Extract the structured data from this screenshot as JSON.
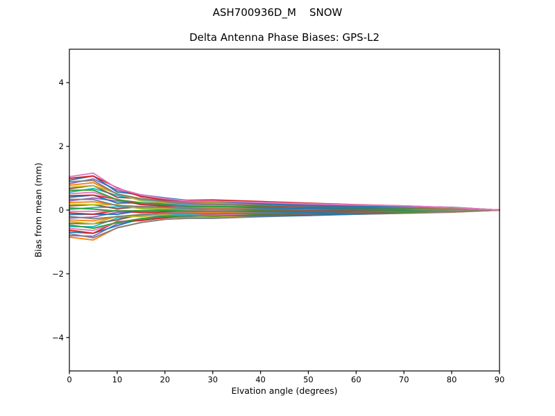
{
  "chart_data": {
    "type": "line",
    "suptitle": "ASH700936D_M    SNOW",
    "title": "Delta Antenna Phase Biases: GPS-L2",
    "xlabel": "Elvation angle (degrees)",
    "ylabel": "Bias from mean (mm)",
    "xlim": [
      0,
      90
    ],
    "ylim": [
      -5.05,
      5.05
    ],
    "grid": false,
    "legend": "none",
    "frame_color": "#000000",
    "background_color": "#ffffff",
    "xticks": [
      0,
      10,
      20,
      30,
      40,
      50,
      60,
      70,
      80,
      90
    ],
    "yticks": [
      {
        "value": -4,
        "label": "−4"
      },
      {
        "value": -2,
        "label": "−2"
      },
      {
        "value": 0,
        "label": "0"
      },
      {
        "value": 2,
        "label": "2"
      },
      {
        "value": 4,
        "label": "4"
      }
    ],
    "x": [
      0,
      5,
      10,
      15,
      20,
      25,
      30,
      40,
      50,
      60,
      70,
      80,
      90
    ],
    "series": [
      {
        "color": "#ff7f0e",
        "values": [
          -0.85,
          -0.94,
          -0.55,
          -0.39,
          -0.29,
          -0.24,
          -0.23,
          -0.2,
          -0.16,
          -0.13,
          -0.1,
          -0.07,
          0
        ]
      },
      {
        "color": "#9467bd",
        "values": [
          -0.8,
          -0.82,
          -0.43,
          -0.31,
          -0.24,
          -0.2,
          -0.17,
          -0.13,
          -0.13,
          -0.11,
          -0.09,
          -0.06,
          0
        ]
      },
      {
        "color": "#7f7f7f",
        "values": [
          -0.74,
          -0.87,
          -0.56,
          -0.39,
          -0.29,
          -0.26,
          -0.26,
          -0.21,
          -0.17,
          -0.13,
          -0.1,
          -0.06,
          0
        ]
      },
      {
        "color": "#1f77b4",
        "values": [
          -0.69,
          -0.73,
          -0.49,
          -0.27,
          -0.17,
          -0.15,
          -0.17,
          -0.18,
          -0.17,
          -0.12,
          -0.08,
          -0.05,
          0
        ]
      },
      {
        "color": "#d62728",
        "values": [
          -0.63,
          -0.73,
          -0.36,
          -0.33,
          -0.24,
          -0.15,
          -0.12,
          -0.11,
          -0.09,
          -0.08,
          -0.07,
          -0.05,
          0
        ]
      },
      {
        "color": "#e377c2",
        "values": [
          -0.58,
          -0.64,
          -0.38,
          -0.27,
          -0.2,
          -0.16,
          -0.16,
          -0.13,
          -0.11,
          -0.09,
          -0.07,
          -0.05,
          0
        ]
      },
      {
        "color": "#17becf",
        "values": [
          -0.52,
          -0.52,
          -0.25,
          -0.18,
          -0.15,
          -0.13,
          -0.1,
          -0.07,
          -0.08,
          -0.07,
          -0.05,
          -0.04,
          0
        ]
      },
      {
        "color": "#2ca02c",
        "values": [
          -0.47,
          -0.57,
          -0.39,
          -0.27,
          -0.2,
          -0.18,
          -0.19,
          -0.15,
          -0.12,
          -0.09,
          -0.07,
          -0.04,
          0
        ]
      },
      {
        "color": "#8c564b",
        "values": [
          -0.42,
          -0.43,
          -0.31,
          -0.14,
          -0.08,
          -0.08,
          -0.09,
          -0.12,
          -0.12,
          -0.08,
          -0.05,
          -0.02,
          0
        ]
      },
      {
        "color": "#bcbd22",
        "values": [
          -0.36,
          -0.43,
          -0.19,
          -0.21,
          -0.14,
          -0.07,
          -0.05,
          -0.04,
          -0.04,
          -0.03,
          -0.03,
          -0.03,
          0
        ]
      },
      {
        "color": "#ff7f0e",
        "values": [
          -0.31,
          -0.34,
          -0.2,
          -0.14,
          -0.1,
          -0.09,
          -0.08,
          -0.07,
          -0.06,
          -0.05,
          -0.04,
          -0.02,
          0
        ]
      },
      {
        "color": "#9467bd",
        "values": [
          -0.25,
          -0.22,
          -0.07,
          -0.06,
          -0.06,
          -0.05,
          -0.03,
          -0.01,
          -0.03,
          -0.03,
          -0.02,
          -0.02,
          0
        ]
      },
      {
        "color": "#7f7f7f",
        "values": [
          -0.2,
          -0.27,
          -0.21,
          -0.14,
          -0.11,
          -0.11,
          -0.11,
          -0.09,
          -0.07,
          -0.05,
          -0.03,
          -0.02,
          0
        ]
      },
      {
        "color": "#1f77b4",
        "values": [
          -0.14,
          -0.13,
          -0.13,
          -0.02,
          0.01,
          0.0,
          -0.02,
          -0.05,
          -0.07,
          -0.04,
          -0.02,
          0.0,
          0
        ]
      },
      {
        "color": "#d62728",
        "values": [
          -0.09,
          -0.13,
          -0.01,
          -0.08,
          -0.05,
          0.01,
          0.03,
          0.02,
          0.01,
          0.01,
          0.0,
          -0.01,
          0
        ]
      },
      {
        "color": "#e377c2",
        "values": [
          -0.04,
          -0.04,
          -0.02,
          -0.02,
          -0.01,
          -0.01,
          -0.01,
          -0.01,
          -0.01,
          -0.01,
          0.0,
          0.0,
          0
        ]
      },
      {
        "color": "#17becf",
        "values": [
          0.02,
          0.08,
          0.1,
          0.07,
          0.04,
          0.03,
          0.05,
          0.05,
          0.02,
          0.01,
          0.01,
          0.0,
          0
        ]
      },
      {
        "color": "#2ca02c",
        "values": [
          0.07,
          0.03,
          -0.03,
          -0.02,
          -0.01,
          -0.03,
          -0.04,
          -0.02,
          -0.02,
          -0.01,
          0.0,
          0.01,
          0
        ]
      },
      {
        "color": "#8c564b",
        "values": [
          0.13,
          0.17,
          0.04,
          0.11,
          0.1,
          0.08,
          0.05,
          0.01,
          -0.02,
          0.0,
          0.02,
          0.02,
          0
        ]
      },
      {
        "color": "#bcbd22",
        "values": [
          0.18,
          0.17,
          0.17,
          0.04,
          0.04,
          0.08,
          0.1,
          0.08,
          0.06,
          0.05,
          0.03,
          0.01,
          0
        ]
      },
      {
        "color": "#ff7f0e",
        "values": [
          0.24,
          0.26,
          0.15,
          0.11,
          0.08,
          0.07,
          0.06,
          0.05,
          0.04,
          0.04,
          0.03,
          0.02,
          0
        ]
      },
      {
        "color": "#9467bd",
        "values": [
          0.29,
          0.38,
          0.28,
          0.19,
          0.13,
          0.1,
          0.12,
          0.12,
          0.08,
          0.05,
          0.04,
          0.02,
          0
        ]
      },
      {
        "color": "#7f7f7f",
        "values": [
          0.34,
          0.33,
          0.14,
          0.11,
          0.08,
          0.05,
          0.03,
          0.04,
          0.04,
          0.03,
          0.03,
          0.03,
          0
        ]
      },
      {
        "color": "#1f77b4",
        "values": [
          0.4,
          0.47,
          0.22,
          0.23,
          0.2,
          0.15,
          0.13,
          0.07,
          0.04,
          0.04,
          0.05,
          0.04,
          0
        ]
      },
      {
        "color": "#d62728",
        "values": [
          0.45,
          0.47,
          0.34,
          0.17,
          0.13,
          0.16,
          0.17,
          0.14,
          0.12,
          0.09,
          0.06,
          0.04,
          0
        ]
      },
      {
        "color": "#e377c2",
        "values": [
          0.51,
          0.56,
          0.33,
          0.23,
          0.17,
          0.14,
          0.14,
          0.12,
          0.1,
          0.08,
          0.06,
          0.04,
          0
        ]
      },
      {
        "color": "#17becf",
        "values": [
          0.56,
          0.68,
          0.46,
          0.32,
          0.22,
          0.18,
          0.19,
          0.18,
          0.13,
          0.09,
          0.08,
          0.05,
          0
        ]
      },
      {
        "color": "#2ca02c",
        "values": [
          0.62,
          0.63,
          0.32,
          0.23,
          0.17,
          0.12,
          0.11,
          0.1,
          0.09,
          0.07,
          0.06,
          0.05,
          0
        ]
      },
      {
        "color": "#8c564b",
        "values": [
          0.67,
          0.77,
          0.4,
          0.36,
          0.29,
          0.23,
          0.2,
          0.13,
          0.09,
          0.08,
          0.08,
          0.06,
          0
        ]
      },
      {
        "color": "#bcbd22",
        "values": [
          0.72,
          0.77,
          0.52,
          0.29,
          0.23,
          0.23,
          0.25,
          0.21,
          0.17,
          0.13,
          0.1,
          0.06,
          0
        ]
      },
      {
        "color": "#ff7f0e",
        "values": [
          0.78,
          0.86,
          0.51,
          0.36,
          0.26,
          0.22,
          0.21,
          0.18,
          0.15,
          0.12,
          0.09,
          0.06,
          0
        ]
      },
      {
        "color": "#9467bd",
        "values": [
          0.83,
          0.98,
          0.63,
          0.44,
          0.31,
          0.25,
          0.27,
          0.24,
          0.18,
          0.13,
          0.11,
          0.07,
          0
        ]
      },
      {
        "color": "#7f7f7f",
        "values": [
          0.89,
          0.93,
          0.5,
          0.36,
          0.26,
          0.2,
          0.18,
          0.16,
          0.14,
          0.11,
          0.1,
          0.07,
          0
        ]
      },
      {
        "color": "#1f77b4",
        "values": [
          0.94,
          1.07,
          0.57,
          0.48,
          0.38,
          0.3,
          0.27,
          0.2,
          0.14,
          0.12,
          0.11,
          0.09,
          0
        ]
      },
      {
        "color": "#d62728",
        "values": [
          1.0,
          1.07,
          0.7,
          0.42,
          0.32,
          0.31,
          0.32,
          0.27,
          0.22,
          0.17,
          0.13,
          0.08,
          0
        ]
      },
      {
        "color": "#e377c2",
        "values": [
          1.05,
          1.16,
          0.68,
          0.48,
          0.36,
          0.29,
          0.28,
          0.24,
          0.2,
          0.16,
          0.13,
          0.08,
          0
        ]
      }
    ]
  }
}
